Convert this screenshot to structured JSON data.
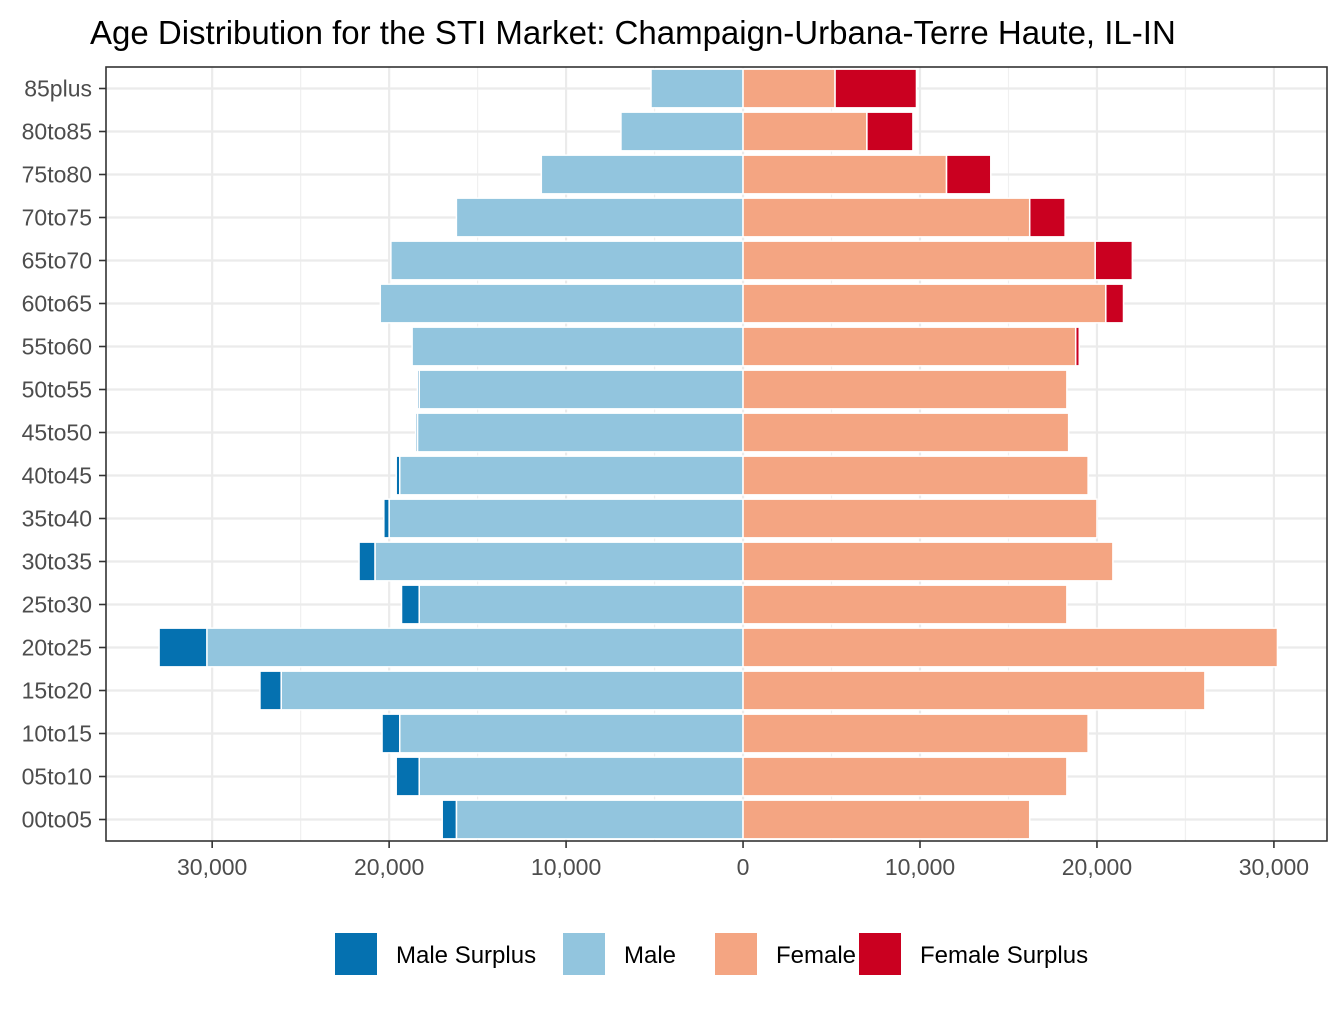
{
  "chart_data": {
    "type": "bar",
    "orientation": "horizontal",
    "title": "Age Distribution for the STI Market: Champaign-Urbana-Terre Haute, IL-IN",
    "xlabel": "",
    "ylabel": "",
    "categories": [
      "00to05",
      "05to10",
      "10to15",
      "15to20",
      "20to25",
      "25to30",
      "30to35",
      "35to40",
      "40to45",
      "45to50",
      "50to55",
      "55to60",
      "60to65",
      "65to70",
      "70to75",
      "75to80",
      "80to85",
      "85plus"
    ],
    "series": [
      {
        "name": "Male Surplus",
        "color": "#0571b0",
        "values": [
          800,
          1300,
          1000,
          1200,
          2700,
          1000,
          900,
          300,
          200,
          100,
          100,
          0,
          0,
          0,
          0,
          0,
          0,
          0
        ]
      },
      {
        "name": "Male",
        "color": "#92c5de",
        "values": [
          16200,
          18300,
          19400,
          26100,
          30300,
          18300,
          20800,
          20000,
          19400,
          18400,
          18300,
          18700,
          20500,
          19900,
          16200,
          11400,
          6900,
          5200
        ]
      },
      {
        "name": "Female",
        "color": "#f4a582",
        "values": [
          16200,
          18300,
          19500,
          26100,
          30200,
          18300,
          20900,
          20000,
          19500,
          18400,
          18300,
          18800,
          20500,
          19900,
          16200,
          11500,
          7000,
          5200
        ]
      },
      {
        "name": "Female Surplus",
        "color": "#ca0020",
        "values": [
          0,
          0,
          0,
          0,
          0,
          0,
          0,
          0,
          0,
          0,
          0,
          200,
          1000,
          2100,
          2000,
          2500,
          2600,
          4600
        ]
      }
    ],
    "xlim": [
      -36000,
      33000
    ],
    "xticks": [
      -30000,
      -20000,
      -10000,
      0,
      10000,
      20000,
      30000
    ],
    "xtick_labels": [
      "30,000",
      "20,000",
      "10,000",
      "0",
      "10,000",
      "20,000",
      "30,000"
    ],
    "grid": true,
    "legend_position": "bottom"
  }
}
